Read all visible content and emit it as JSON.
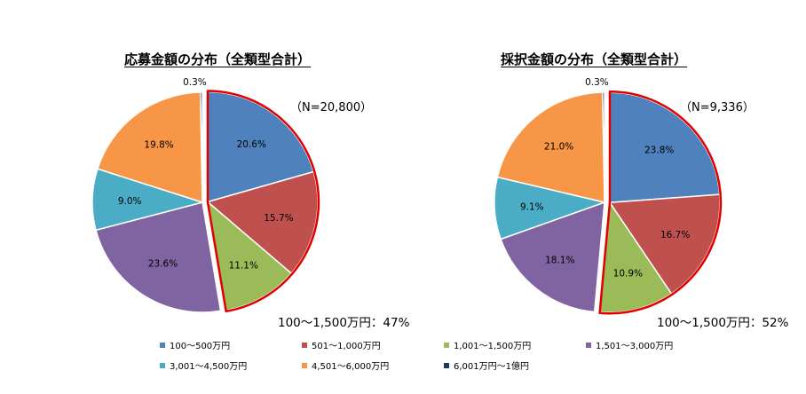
{
  "chart_data": [
    {
      "type": "pie",
      "title": "応募金額の分布（全類型合計）",
      "n_label": "（N=20,800）",
      "highlight_label": "100～1,500万円：47%",
      "categories": [
        "100～500万円",
        "501～1,000万円",
        "1,001～1,500万円",
        "1,501～3,000万円",
        "3,001～4,500万円",
        "4,501～6,000万円",
        "6,001万円～1億円"
      ],
      "values": [
        20.6,
        15.7,
        11.1,
        23.6,
        9.0,
        19.8,
        0.3
      ],
      "data_labels": [
        "20.6%",
        "15.7%",
        "11.1%",
        "23.6%",
        "9.0%",
        "19.8%",
        "0.3%"
      ],
      "highlighted_categories": [
        "100～500万円",
        "501～1,000万円",
        "1,001～1,500万円"
      ],
      "legend_position": "bottom"
    },
    {
      "type": "pie",
      "title": "採択金額の分布（全類型合計）",
      "n_label": "（N=9,336）",
      "highlight_label": "100～1,500万円：52%",
      "categories": [
        "100～500万円",
        "501～1,000万円",
        "1,001～1,500万円",
        "1,501～3,000万円",
        "3,001～4,500万円",
        "4,501～6,000万円",
        "6,001万円～1億円"
      ],
      "values": [
        23.8,
        16.7,
        10.9,
        18.1,
        9.1,
        21.0,
        0.3
      ],
      "data_labels": [
        "23.8%",
        "16.7%",
        "10.9%",
        "18.1%",
        "9.1%",
        "21.0%",
        "0.3%"
      ],
      "highlighted_categories": [
        "100～500万円",
        "501～1,000万円",
        "1,001～1,500万円"
      ],
      "legend_position": "bottom"
    }
  ],
  "legend": [
    {
      "label": "100～500万円",
      "color": "#4F81BD"
    },
    {
      "label": "501～1,000万円",
      "color": "#C0504D"
    },
    {
      "label": "1,001～1,500万円",
      "color": "#9BBB59"
    },
    {
      "label": "1,501～3,000万円",
      "color": "#8064A2"
    },
    {
      "label": "3,001～4,500万円",
      "color": "#4BACC6"
    },
    {
      "label": "4,501～6,000万円",
      "color": "#F79646"
    },
    {
      "label": "6,001万円～1億円",
      "color": "#1F3864"
    }
  ],
  "highlight_color": "#E00000"
}
